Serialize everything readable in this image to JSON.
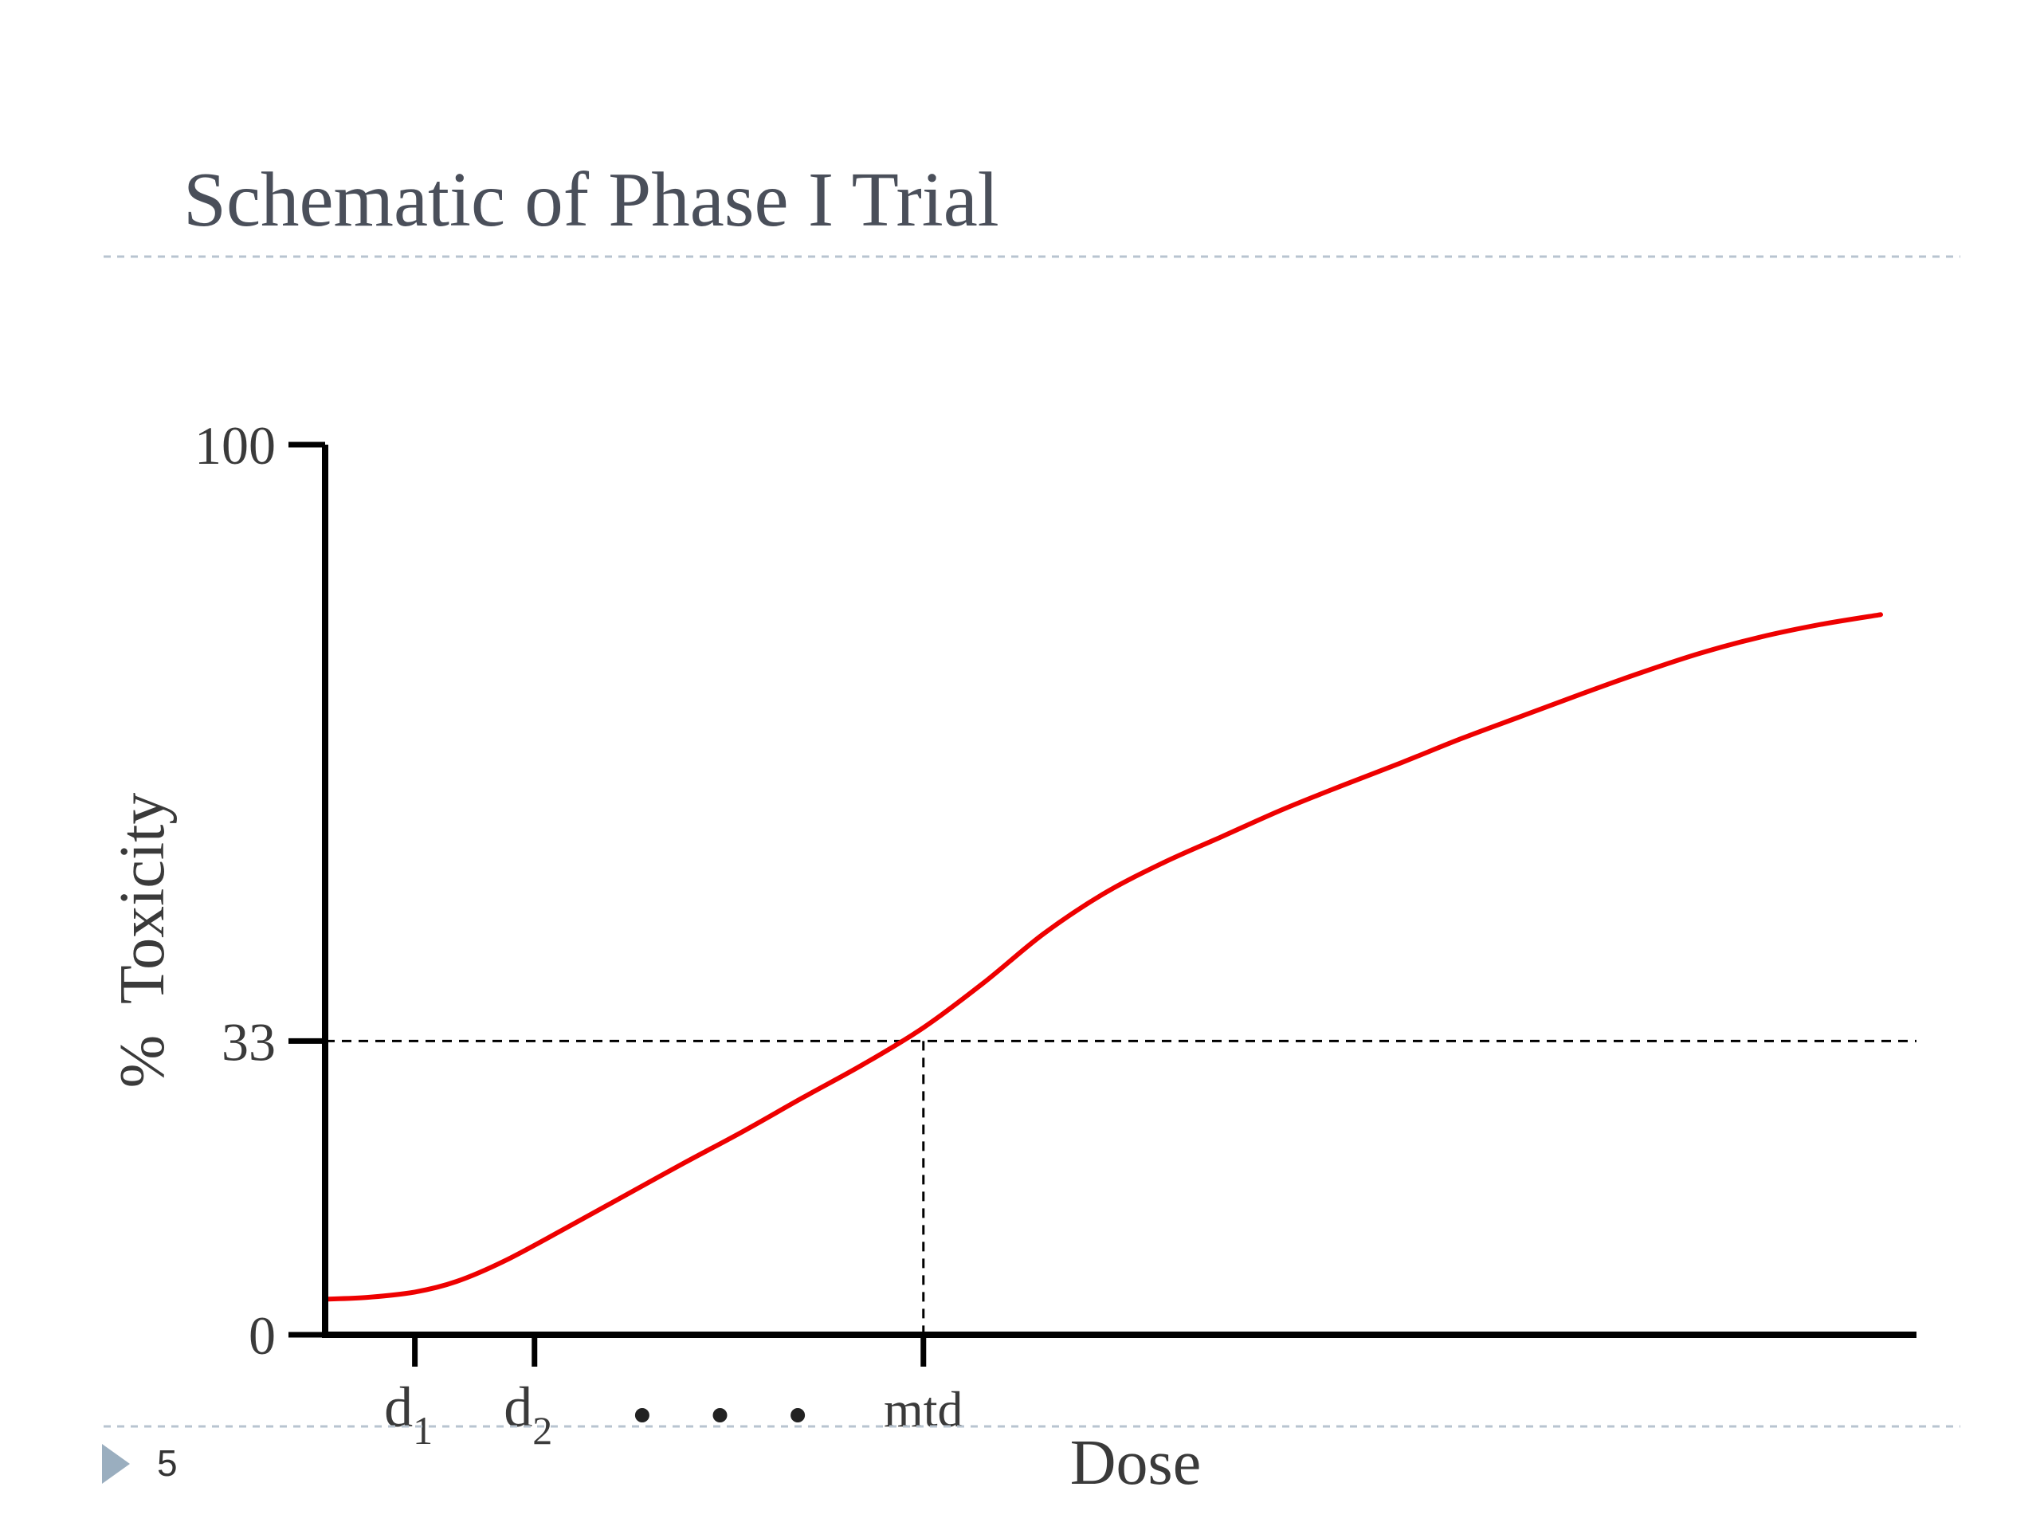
{
  "slide": {
    "title": "Schematic of Phase I Trial",
    "page_number": "5",
    "colors": {
      "title": "#4a4f5a",
      "rule": "#b8c4d0",
      "bullet": "#9aaebf",
      "curve": "#ee0000",
      "axis": "#000000"
    }
  },
  "chart_data": {
    "type": "line",
    "title": "",
    "xlabel": "Dose",
    "ylabel": "%  Toxicity",
    "ylim": [
      0,
      100
    ],
    "yticks": [
      {
        "value": 0,
        "label": "0"
      },
      {
        "value": 33,
        "label": "33"
      },
      {
        "value": 100,
        "label": "100"
      }
    ],
    "xlim": [
      0,
      13.3
    ],
    "xticks": [
      {
        "x": 0.75,
        "main": "d",
        "sub": "1",
        "name": "d1"
      },
      {
        "x": 1.75,
        "main": "d",
        "sub": "2",
        "name": "d2"
      },
      {
        "x": 5.0,
        "main": "mtd",
        "sub": "",
        "name": "mtd"
      }
    ],
    "ellipsis_x": [
      2.65,
      3.3,
      3.95
    ],
    "reference": {
      "y": 33,
      "x": 5.0
    },
    "grid": false,
    "series": [
      {
        "color": "#ee0000",
        "x": [
          0,
          0.35,
          0.75,
          1.1,
          1.5,
          2.0,
          2.5,
          3.0,
          3.5,
          4.0,
          4.5,
          5.0,
          5.5,
          6.0,
          6.5,
          7.0,
          7.5,
          8.0,
          8.5,
          9.0,
          9.5,
          10.0,
          10.5,
          11.0,
          11.5,
          12.0,
          12.5,
          13.0
        ],
        "y": [
          4,
          4.2,
          4.8,
          6.0,
          8.3,
          11.9,
          15.6,
          19.3,
          22.9,
          26.7,
          30.4,
          34.5,
          39.5,
          45.0,
          49.5,
          53.0,
          56.0,
          59.0,
          61.7,
          64.3,
          67.0,
          69.5,
          72.0,
          74.4,
          76.6,
          78.4,
          79.8,
          80.9
        ]
      }
    ]
  }
}
